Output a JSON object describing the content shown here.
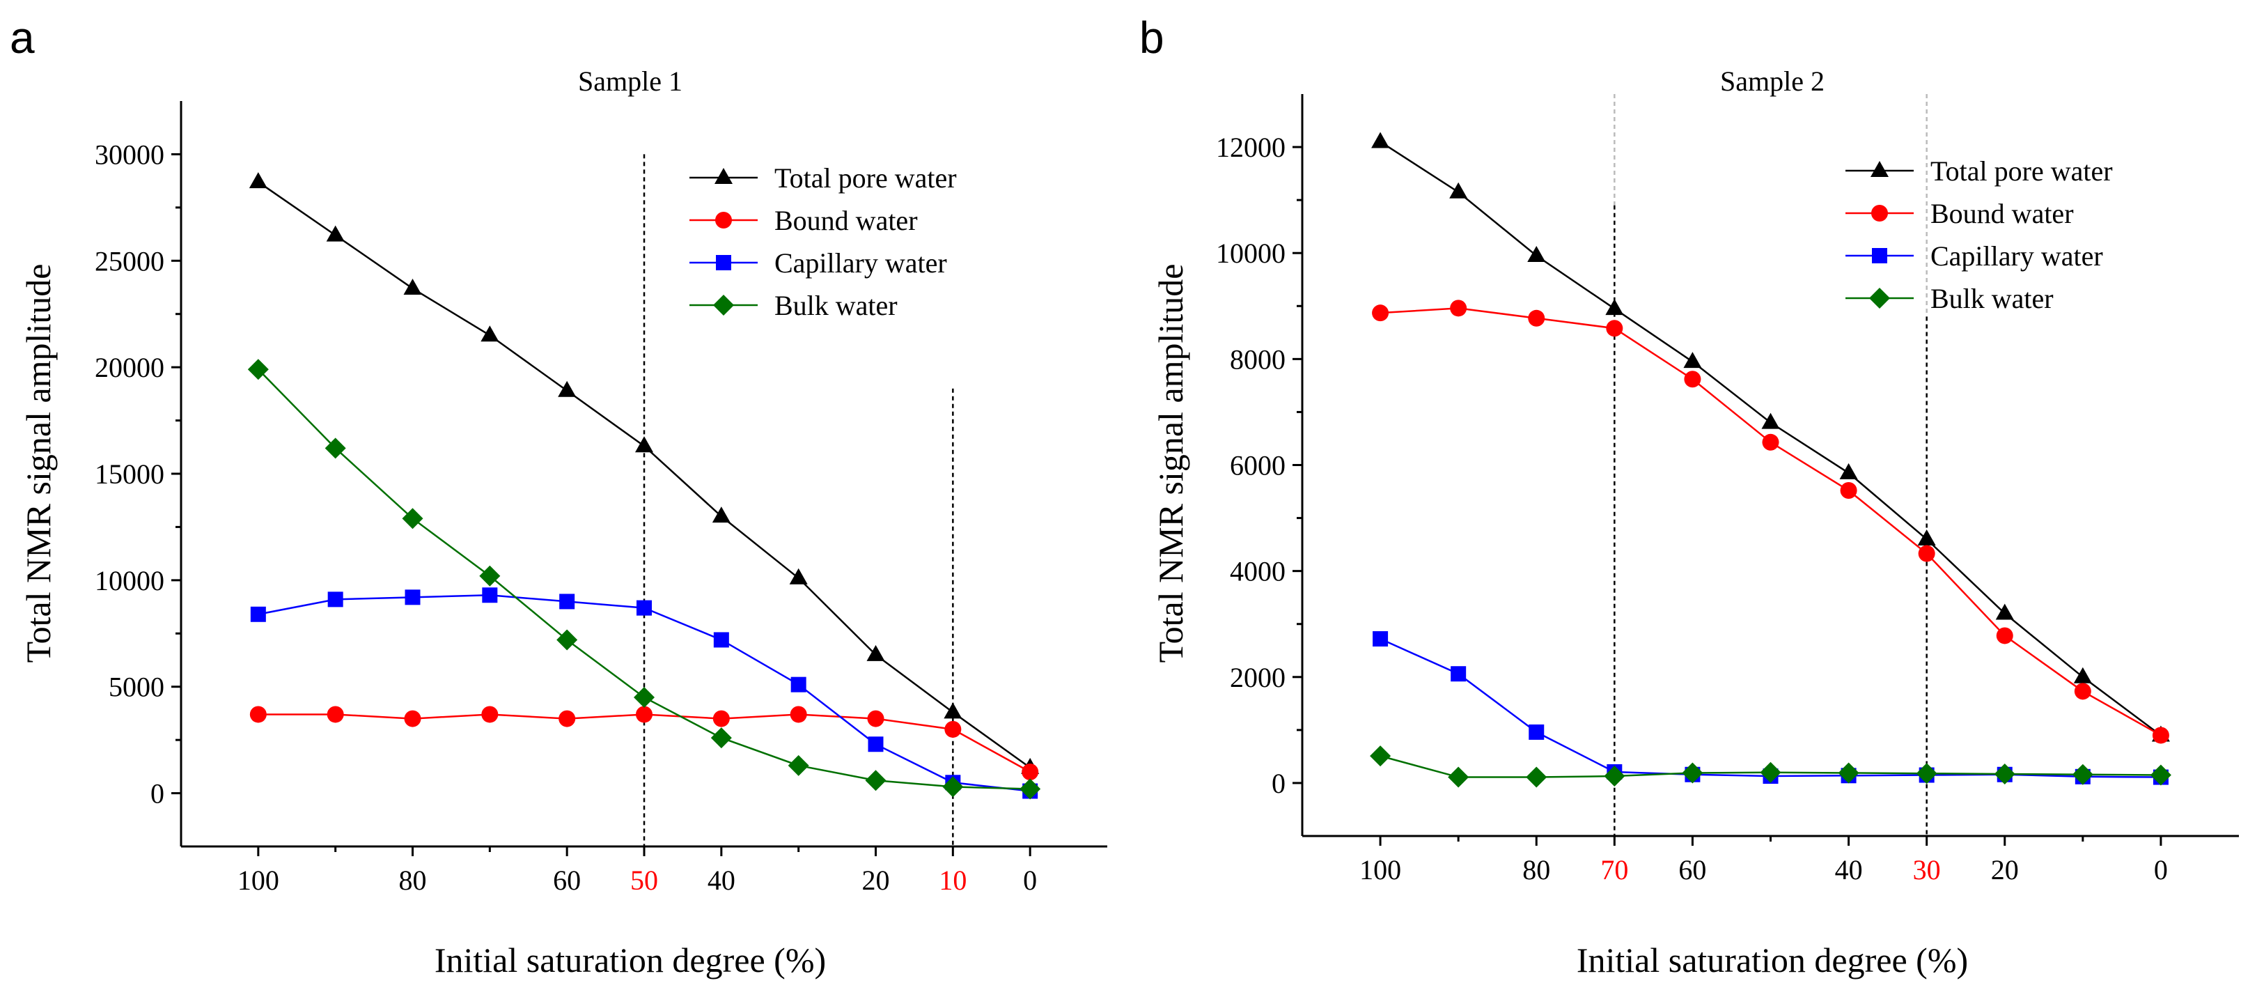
{
  "chart_data": [
    {
      "panel": "a",
      "type": "line",
      "title": "Sample 1",
      "xlabel": "Initial saturation degree (%)",
      "ylabel": "Total NMR signal amplitude",
      "xlim": [
        110,
        -10
      ],
      "ylim": [
        -2500,
        32500
      ],
      "xticks": [
        100,
        80,
        60,
        50,
        40,
        20,
        10,
        0
      ],
      "yticks": [
        0,
        5000,
        10000,
        15000,
        20000,
        25000,
        30000
      ],
      "highlight_ticks": [
        50,
        10
      ],
      "highlight_color": "#ff0000",
      "vlines": [
        {
          "x": 50,
          "top": 30000,
          "color": "#000000"
        },
        {
          "x": 10,
          "top": 19000,
          "color": "#000000"
        }
      ],
      "series": [
        {
          "name": "Total pore water",
          "color": "#000000",
          "marker": "triangle",
          "x": [
            100,
            90,
            80,
            70,
            60,
            50,
            40,
            30,
            20,
            10,
            0
          ],
          "values": [
            28700,
            26200,
            23700,
            21500,
            18900,
            16300,
            13000,
            10100,
            6500,
            3800,
            1200
          ]
        },
        {
          "name": "Bound water",
          "color": "#ff0000",
          "marker": "circle",
          "x": [
            100,
            90,
            80,
            70,
            60,
            50,
            40,
            30,
            20,
            10,
            0
          ],
          "values": [
            3700,
            3700,
            3500,
            3700,
            3500,
            3700,
            3500,
            3700,
            3500,
            3000,
            1000
          ]
        },
        {
          "name": "Capillary water",
          "color": "#0000ff",
          "marker": "square",
          "x": [
            100,
            90,
            80,
            70,
            60,
            50,
            40,
            30,
            20,
            10,
            0
          ],
          "values": [
            8400,
            9100,
            9200,
            9300,
            9000,
            8700,
            7200,
            5100,
            2300,
            500,
            100
          ]
        },
        {
          "name": "Bulk water",
          "color": "#007000",
          "marker": "diamond",
          "x": [
            100,
            90,
            80,
            70,
            60,
            50,
            40,
            30,
            20,
            10,
            0
          ],
          "values": [
            19900,
            16200,
            12900,
            10200,
            7200,
            4500,
            2600,
            1300,
            600,
            300,
            200
          ]
        }
      ]
    },
    {
      "panel": "b",
      "type": "line",
      "title": "Sample 2",
      "xlabel": "Initial saturation degree (%)",
      "ylabel": "Total NMR signal amplitude",
      "xlim": [
        110,
        -10
      ],
      "ylim": [
        -1000,
        13000
      ],
      "xticks": [
        100,
        80,
        70,
        60,
        40,
        30,
        20,
        0
      ],
      "yticks": [
        0,
        2000,
        4000,
        6000,
        8000,
        10000,
        12000
      ],
      "highlight_ticks": [
        70,
        30
      ],
      "highlight_color": "#ff0000",
      "vlines": [
        {
          "x": 70,
          "top": 13000,
          "top_dark": 10900,
          "color": "#000000"
        },
        {
          "x": 30,
          "top": 13000,
          "top_dark": 8800,
          "color": "#000000"
        }
      ],
      "series": [
        {
          "name": "Total pore water",
          "color": "#000000",
          "marker": "triangle",
          "x": [
            100,
            90,
            80,
            70,
            60,
            50,
            40,
            30,
            20,
            10,
            0
          ],
          "values": [
            12100,
            11150,
            9950,
            8950,
            7950,
            6800,
            5850,
            4600,
            3200,
            2000,
            900
          ]
        },
        {
          "name": "Bound water",
          "color": "#ff0000",
          "marker": "circle",
          "x": [
            100,
            90,
            80,
            70,
            60,
            50,
            40,
            30,
            20,
            10,
            0
          ],
          "values": [
            8870,
            8960,
            8770,
            8580,
            7620,
            6430,
            5520,
            4330,
            2780,
            1730,
            900
          ]
        },
        {
          "name": "Capillary water",
          "color": "#0000ff",
          "marker": "square",
          "x": [
            100,
            90,
            80,
            70,
            60,
            50,
            40,
            30,
            20,
            10,
            0
          ],
          "values": [
            2720,
            2060,
            960,
            210,
            160,
            130,
            140,
            150,
            160,
            120,
            110
          ]
        },
        {
          "name": "Bulk water",
          "color": "#007000",
          "marker": "diamond",
          "x": [
            100,
            90,
            80,
            70,
            60,
            50,
            40,
            30,
            20,
            10,
            0
          ],
          "values": [
            510,
            110,
            110,
            130,
            190,
            200,
            190,
            180,
            170,
            160,
            150
          ]
        }
      ]
    }
  ]
}
